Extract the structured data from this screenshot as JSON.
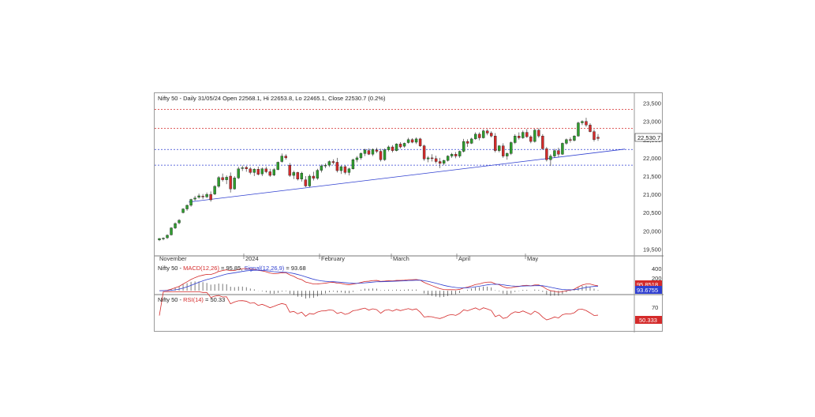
{
  "header": {
    "instrument": "Nifty 50",
    "info": "Nifty 50 - Daily 31/05/24 Open 22568.1, Hi 22653.8, Lo 22465.1, Close 22530.7 (0.2%)"
  },
  "price_axis": [
    "23,500",
    "23,000",
    "22,500",
    "22,000",
    "21,500",
    "21,000",
    "20,500",
    "20,000",
    "19,500"
  ],
  "last_price_tag": "22,530.7",
  "month_labels": [
    "November",
    "2024",
    "February",
    "March",
    "April",
    "May"
  ],
  "macd_panel": {
    "instrument": "Nifty 50 - ",
    "name": "MACD(12,26)",
    "value": " = 95.85, ",
    "signal_name": "Signal(12,26,9)",
    "signal_value": " = 93.68",
    "axis": [
      "400",
      "200"
    ],
    "tag_macd": "95.8518",
    "tag_signal": "93.6755"
  },
  "rsi_panel": {
    "instrument": "Nifty 50 - ",
    "name": "RSI(14)",
    "value": " = 50.33",
    "axis": [
      "70"
    ],
    "tag": "50.333"
  },
  "colors": {
    "up": "#2e9e2e",
    "down": "#d42a2a",
    "macd": "#d42a2a",
    "signal": "#2f3fd0",
    "trendline": "#2f3fd0",
    "resistance": "#d42a2a",
    "support": "#2f3fd0"
  },
  "chart_data": {
    "type": "candlestick",
    "title": "Nifty 50 - Daily 31/05/24 Open 22568.1, Hi 22653.8, Lo 22465.1, Close 22530.7 (0.2%)",
    "ylim": [
      19400,
      23600
    ],
    "horizontal_levels": {
      "resistance": [
        23330,
        22810
      ],
      "support": [
        22230,
        21800
      ]
    },
    "trendline": [
      [
        0.08,
        20790
      ],
      [
        1.0,
        22240
      ]
    ],
    "candles": [
      [
        19750,
        19800,
        19720,
        19790
      ],
      [
        19790,
        19820,
        19740,
        19800
      ],
      [
        19810,
        19900,
        19780,
        19880
      ],
      [
        19890,
        20100,
        19870,
        20080
      ],
      [
        20080,
        20230,
        20050,
        20200
      ],
      [
        20220,
        20320,
        20180,
        20290
      ],
      [
        20500,
        20620,
        20480,
        20600
      ],
      [
        20600,
        20720,
        20550,
        20700
      ],
      [
        20700,
        20880,
        20660,
        20860
      ],
      [
        20870,
        20960,
        20830,
        20900
      ],
      [
        20920,
        21020,
        20880,
        20960
      ],
      [
        20950,
        21010,
        20870,
        20930
      ],
      [
        20930,
        21050,
        20900,
        21000
      ],
      [
        21000,
        21080,
        20800,
        20850
      ],
      [
        21010,
        21250,
        20980,
        21220
      ],
      [
        21220,
        21500,
        21180,
        21460
      ],
      [
        21460,
        21570,
        21350,
        21400
      ],
      [
        21400,
        21520,
        21280,
        21470
      ],
      [
        21500,
        21600,
        21050,
        21150
      ],
      [
        21150,
        21500,
        21130,
        21450
      ],
      [
        21450,
        21760,
        21420,
        21700
      ],
      [
        21710,
        21790,
        21640,
        21730
      ],
      [
        21740,
        21780,
        21620,
        21700
      ],
      [
        21700,
        21750,
        21550,
        21600
      ],
      [
        21600,
        21720,
        21500,
        21690
      ],
      [
        21690,
        21760,
        21520,
        21550
      ],
      [
        21560,
        21740,
        21500,
        21700
      ],
      [
        21700,
        21760,
        21580,
        21620
      ],
      [
        21620,
        21700,
        21480,
        21520
      ],
      [
        21530,
        21720,
        21500,
        21680
      ],
      [
        21680,
        21900,
        21660,
        21880
      ],
      [
        21900,
        22120,
        21870,
        22050
      ],
      [
        22050,
        22100,
        21950,
        22000
      ],
      [
        21800,
        21860,
        21480,
        21520
      ],
      [
        21520,
        21650,
        21420,
        21600
      ],
      [
        21600,
        21620,
        21380,
        21420
      ],
      [
        21420,
        21620,
        21350,
        21580
      ],
      [
        21400,
        21500,
        21200,
        21230
      ],
      [
        21230,
        21550,
        21200,
        21500
      ],
      [
        21500,
        21620,
        21380,
        21440
      ],
      [
        21440,
        21700,
        21400,
        21660
      ],
      [
        21660,
        21820,
        21600,
        21780
      ],
      [
        21780,
        21850,
        21720,
        21800
      ],
      [
        21800,
        21930,
        21750,
        21900
      ],
      [
        21900,
        21960,
        21820,
        21870
      ],
      [
        21880,
        22000,
        21600,
        21650
      ],
      [
        21650,
        21790,
        21560,
        21760
      ],
      [
        21760,
        21800,
        21550,
        21600
      ],
      [
        21600,
        21730,
        21520,
        21700
      ],
      [
        21700,
        21980,
        21680,
        21950
      ],
      [
        21950,
        22050,
        21880,
        22000
      ],
      [
        22000,
        22150,
        21950,
        22120
      ],
      [
        22120,
        22250,
        22050,
        22220
      ],
      [
        22200,
        22260,
        22080,
        22100
      ],
      [
        22100,
        22260,
        22050,
        22230
      ],
      [
        22220,
        22280,
        22130,
        22180
      ],
      [
        22180,
        22250,
        21900,
        21950
      ],
      [
        21950,
        22260,
        21920,
        22220
      ],
      [
        22220,
        22340,
        22180,
        22300
      ],
      [
        22300,
        22350,
        22150,
        22200
      ],
      [
        22200,
        22400,
        22180,
        22380
      ],
      [
        22380,
        22430,
        22260,
        22300
      ],
      [
        22320,
        22420,
        22280,
        22400
      ],
      [
        22420,
        22550,
        22390,
        22500
      ],
      [
        22500,
        22540,
        22400,
        22430
      ],
      [
        22430,
        22560,
        22380,
        22520
      ],
      [
        22520,
        22550,
        22300,
        22330
      ],
      [
        22330,
        22360,
        21920,
        21970
      ],
      [
        21970,
        22050,
        21880,
        22000
      ],
      [
        22000,
        22100,
        21900,
        21980
      ],
      [
        21980,
        22060,
        21850,
        21900
      ],
      [
        21900,
        22000,
        21720,
        21850
      ],
      [
        21850,
        21950,
        21800,
        21930
      ],
      [
        21930,
        22070,
        21900,
        22050
      ],
      [
        22050,
        22140,
        22000,
        22100
      ],
      [
        22100,
        22160,
        21990,
        22050
      ],
      [
        22050,
        22200,
        22000,
        22180
      ],
      [
        22180,
        22520,
        22150,
        22450
      ],
      [
        22450,
        22510,
        22300,
        22400
      ],
      [
        22400,
        22550,
        22380,
        22520
      ],
      [
        22520,
        22700,
        22500,
        22650
      ],
      [
        22650,
        22700,
        22480,
        22550
      ],
      [
        22550,
        22780,
        22530,
        22740
      ],
      [
        22740,
        22790,
        22620,
        22680
      ],
      [
        22680,
        22730,
        22560,
        22600
      ],
      [
        22600,
        22680,
        22150,
        22200
      ],
      [
        22200,
        22350,
        22150,
        22330
      ],
      [
        22330,
        22400,
        22000,
        22050
      ],
      [
        22050,
        22150,
        21950,
        22120
      ],
      [
        22120,
        22450,
        22080,
        22420
      ],
      [
        22420,
        22650,
        22380,
        22600
      ],
      [
        22600,
        22700,
        22500,
        22550
      ],
      [
        22550,
        22750,
        22520,
        22700
      ],
      [
        22700,
        22790,
        22550,
        22580
      ],
      [
        22580,
        22620,
        22400,
        22450
      ],
      [
        22450,
        22800,
        22420,
        22760
      ],
      [
        22760,
        22810,
        22550,
        22600
      ],
      [
        22600,
        22650,
        22220,
        22250
      ],
      [
        22250,
        22300,
        21900,
        21950
      ],
      [
        21950,
        22100,
        21780,
        22050
      ],
      [
        22050,
        22250,
        22000,
        22200
      ],
      [
        22200,
        22280,
        22030,
        22100
      ],
      [
        22100,
        22420,
        22080,
        22400
      ],
      [
        22400,
        22530,
        22360,
        22500
      ],
      [
        22500,
        22560,
        22420,
        22480
      ],
      [
        22480,
        22620,
        22450,
        22600
      ],
      [
        22600,
        22990,
        22580,
        22960
      ],
      [
        22960,
        23030,
        22900,
        23000
      ],
      [
        23000,
        23100,
        22850,
        22900
      ],
      [
        22900,
        22950,
        22700,
        22720
      ],
      [
        22720,
        22780,
        22450,
        22500
      ],
      [
        22568,
        22654,
        22465,
        22531
      ]
    ],
    "macd_series": [
      {
        "name": "MACD(12,26)",
        "last": 95.85
      },
      {
        "name": "Signal(12,26,9)",
        "last": 93.68
      }
    ],
    "rsi_series": {
      "name": "RSI(14)",
      "last": 50.33,
      "level": 70
    }
  }
}
